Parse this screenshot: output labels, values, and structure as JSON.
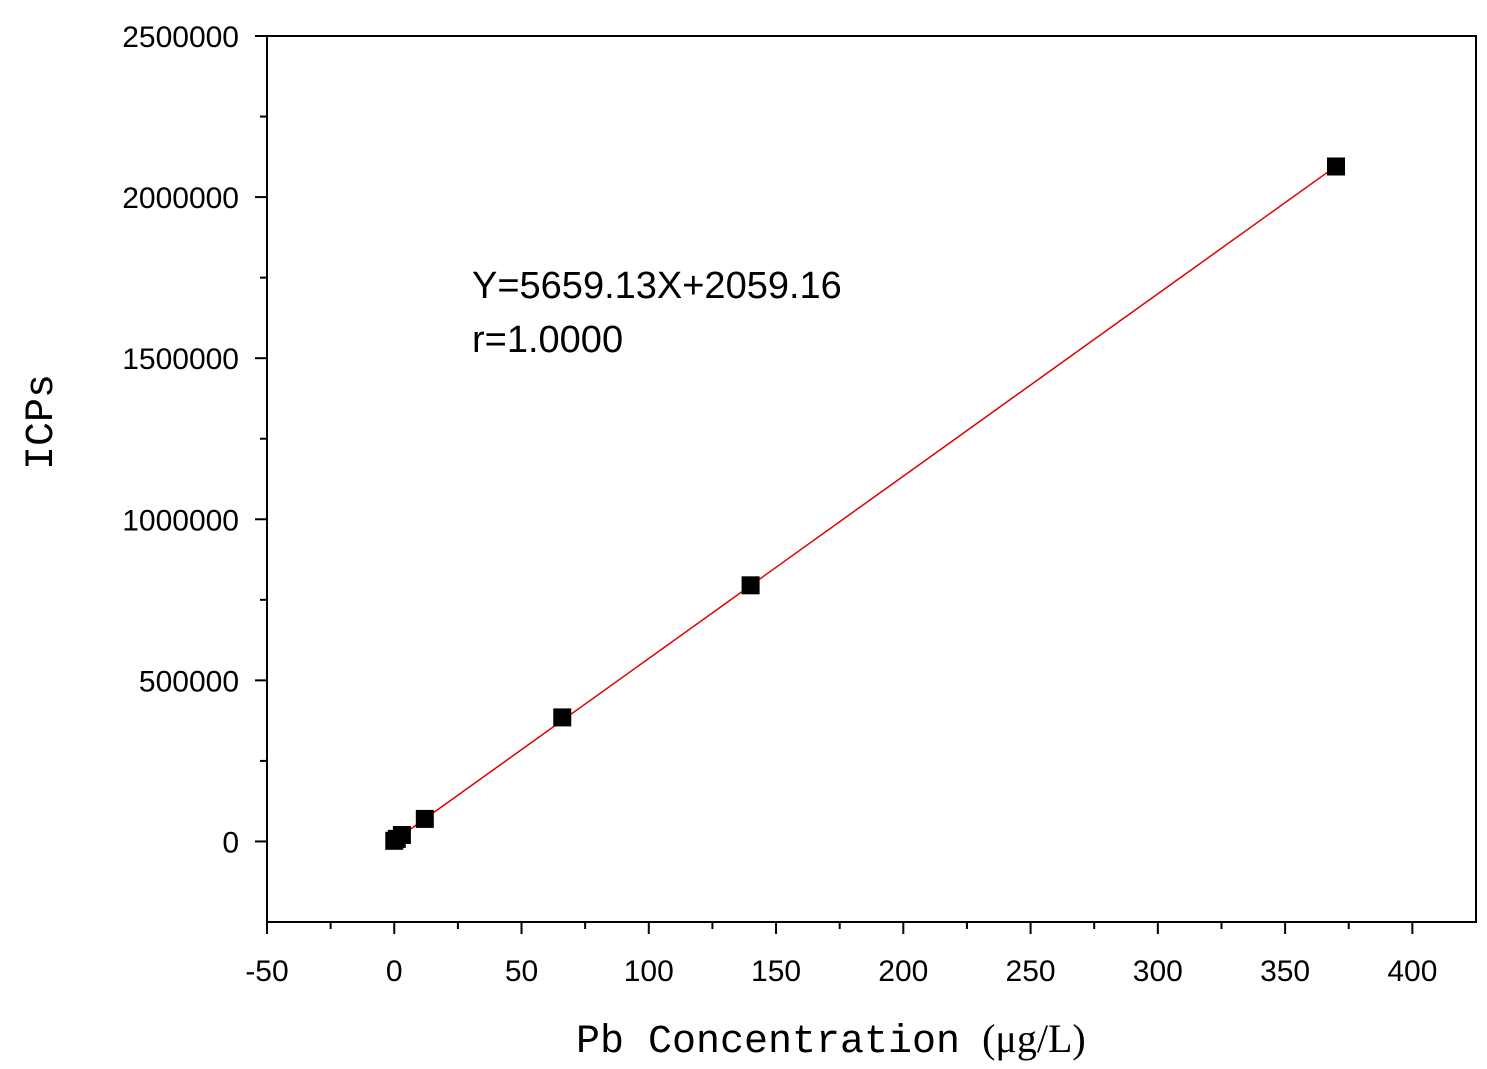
{
  "chart_data": {
    "type": "scatter",
    "xlabel": "Pb Concentration",
    "xlabel_unit": "(μg/L)",
    "ylabel": "ICPs",
    "xlim": [
      -50,
      425
    ],
    "ylim": [
      -250000,
      2500000
    ],
    "x_ticks": [
      -50,
      0,
      50,
      100,
      150,
      200,
      250,
      300,
      350,
      400
    ],
    "x_tick_labels": [
      "-50",
      "0",
      "50",
      "100",
      "150",
      "200",
      "250",
      "300",
      "350",
      "400"
    ],
    "y_ticks": [
      0,
      500000,
      1000000,
      1500000,
      2000000,
      2500000
    ],
    "y_tick_labels": [
      "0",
      "500000",
      "1000000",
      "1500000",
      "2000000",
      "2500000"
    ],
    "grid": false,
    "series": [
      {
        "marker": "square",
        "color": "#000000",
        "points": [
          {
            "x": 0,
            "y": 2000
          },
          {
            "x": 1,
            "y": 8000
          },
          {
            "x": 3,
            "y": 20000
          },
          {
            "x": 12,
            "y": 70000
          },
          {
            "x": 66,
            "y": 385000
          },
          {
            "x": 140,
            "y": 795000
          },
          {
            "x": 370,
            "y": 2095000
          }
        ]
      }
    ],
    "fit_line": {
      "color": "#e00000",
      "slope": 5659.13,
      "intercept": 2059.16,
      "x_range": [
        0,
        370
      ]
    },
    "annotations": [
      "Y=5659.13X+2059.16",
      "r=1.0000"
    ]
  }
}
